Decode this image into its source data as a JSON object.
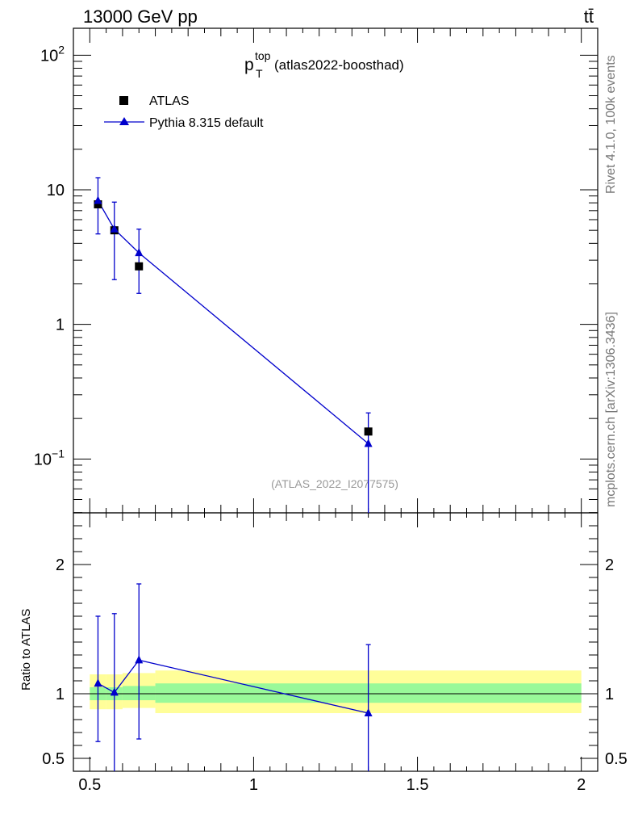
{
  "header": {
    "energy": "13000 GeV pp",
    "process": "tt̄"
  },
  "side_labels": {
    "rivet": "Rivet 4.1.0,  100k events",
    "mcplots": "mcplots.cern.ch [arXiv:1306.3436]"
  },
  "chart_data": {
    "type": "scatter",
    "title_main": "p",
    "title_sup": "top",
    "title_sub": "T",
    "title_rest": " (atlas2022-boosthad)",
    "watermark": "(ATLAS_2022_I2077575)",
    "xlim": [
      0.45,
      2.05
    ],
    "ylim_log10": [
      -1.4,
      2.2
    ],
    "ratio_ylim": [
      0.4,
      2.4
    ],
    "ratio_ylabel": "Ratio to ATLAS",
    "x_ticks": [
      {
        "value": 0.5,
        "label": "0.5"
      },
      {
        "value": 1,
        "label": "1"
      },
      {
        "value": 1.5,
        "label": "1.5"
      },
      {
        "value": 2,
        "label": "2"
      }
    ],
    "y_ticks": [
      {
        "exp": -1,
        "label_base": "10",
        "label_sup": "−1"
      },
      {
        "exp": 0,
        "label_base": "1",
        "label_sup": ""
      },
      {
        "exp": 1,
        "label_base": "10",
        "label_sup": ""
      },
      {
        "exp": 2,
        "label_base": "10",
        "label_sup": "2"
      }
    ],
    "ratio_ticks": [
      {
        "value": 0.5,
        "label": "0.5"
      },
      {
        "value": 1,
        "label": "1"
      },
      {
        "value": 2,
        "label": "2"
      }
    ],
    "legend": [
      {
        "name": "ATLAS",
        "marker": "square"
      },
      {
        "name": "Pythia 8.315 default",
        "marker": "triangle"
      }
    ],
    "data": [
      {
        "x": 0.525,
        "xlo": 0.5,
        "xhi": 0.55,
        "y": 7.8,
        "band_stat": [
          0.95,
          1.05
        ],
        "band_tot": [
          0.88,
          1.15
        ]
      },
      {
        "x": 0.575,
        "xlo": 0.55,
        "xhi": 0.6,
        "y": 5.0,
        "band_stat": [
          0.95,
          1.05
        ],
        "band_tot": [
          0.88,
          1.15
        ]
      },
      {
        "x": 0.65,
        "xlo": 0.6,
        "xhi": 0.7,
        "y": 2.7,
        "band_stat": [
          0.95,
          1.06
        ],
        "band_tot": [
          0.89,
          1.16
        ]
      },
      {
        "x": 1.35,
        "xlo": 0.7,
        "xhi": 2.0,
        "y": 0.16,
        "band_stat": [
          0.93,
          1.08
        ],
        "band_tot": [
          0.85,
          1.18
        ]
      }
    ],
    "mc": [
      {
        "x": 0.525,
        "y": 8.3,
        "ylo": 4.7,
        "yhi": 12.3,
        "ratio": 1.08,
        "rlo": 0.63,
        "rhi": 1.6
      },
      {
        "x": 0.575,
        "y": 5.1,
        "ylo": 2.15,
        "yhi": 8.1,
        "ratio": 1.01,
        "rlo": 0.38,
        "rhi": 1.62
      },
      {
        "x": 0.65,
        "y": 3.4,
        "ylo": 1.7,
        "yhi": 5.1,
        "ratio": 1.26,
        "rlo": 0.65,
        "rhi": 1.85
      },
      {
        "x": 1.35,
        "y": 0.13,
        "ylo": 0.001,
        "yhi": 0.22,
        "ratio": 0.85,
        "rlo": 0.001,
        "rhi": 1.38
      }
    ],
    "colors": {
      "data": "#000000",
      "mc": "#0000cc",
      "band_stat": "#99f999",
      "band_tot": "#fffe99"
    }
  }
}
